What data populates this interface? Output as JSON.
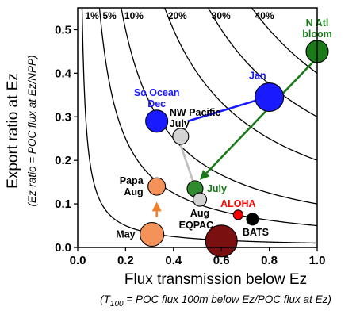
{
  "chart_data": {
    "type": "scatter",
    "title": "",
    "xlabel": "Flux transmission below Ez",
    "xlabel_sub_prefix": "(T",
    "xlabel_sub_subscript": "100",
    "xlabel_sub_rest": " = POC flux 100m below Ez/POC flux at Ez)",
    "ylabel": "Export ratio at Ez",
    "ylabel_sub": "(Ez-ratio = POC flux at Ez/NPP)",
    "xlim": [
      0,
      1.0
    ],
    "ylim": [
      0,
      0.55
    ],
    "x_ticks": [
      "0.0",
      "0.2",
      "0.4",
      "0.6",
      "0.8",
      "1.0"
    ],
    "y_ticks": [
      "0.0",
      "0.1",
      "0.2",
      "0.3",
      "0.4",
      "0.5"
    ],
    "x_tick_values": [
      0,
      0.2,
      0.4,
      0.6,
      0.8,
      1.0
    ],
    "y_tick_values": [
      0,
      0.1,
      0.2,
      0.3,
      0.4,
      0.5
    ],
    "contours": [
      {
        "label": "1%",
        "value": 0.01
      },
      {
        "label": "5%",
        "value": 0.05
      },
      {
        "label": "10%",
        "value": 0.1
      },
      {
        "label": "20%",
        "value": 0.2
      },
      {
        "label": "30%",
        "value": 0.3
      },
      {
        "label": "40%",
        "value": 0.4
      }
    ],
    "points": [
      {
        "x": 1.0,
        "y": 0.45,
        "size": 14,
        "color": "#1a7a1a",
        "label_lines": [
          "N Atl",
          "bloom"
        ],
        "label_color": "#1a7a1a",
        "label_pos": "above"
      },
      {
        "x": 0.8,
        "y": 0.345,
        "size": 18,
        "color": "#1a1aff",
        "label_lines": [
          "Jan"
        ],
        "label_color": "#1a1aff",
        "label_pos": "upper-left"
      },
      {
        "x": 0.33,
        "y": 0.29,
        "size": 14,
        "color": "#1a1aff",
        "label_lines": [
          "So Ocean",
          "Dec"
        ],
        "label_color": "#1a1aff",
        "label_pos": "above"
      },
      {
        "x": 0.43,
        "y": 0.255,
        "size": 10,
        "color": "#d3d3d3",
        "label_lines": [
          "NW Pacific",
          "July"
        ],
        "label_color": "#000000",
        "label_pos": "right"
      },
      {
        "x": 0.49,
        "y": 0.135,
        "size": 10,
        "color": "#2e8b2e",
        "label_lines": [
          "July"
        ],
        "label_color": "#1a7a1a",
        "label_pos": "right"
      },
      {
        "x": 0.51,
        "y": 0.11,
        "size": 8.5,
        "color": "#d3d3d3",
        "label_lines": [
          "Aug"
        ],
        "label_color": "#000000",
        "label_pos": "below"
      },
      {
        "x": 0.33,
        "y": 0.14,
        "size": 11,
        "color": "#f5925a",
        "label_lines": [
          "Papa",
          "Aug"
        ],
        "label_color": "#000000",
        "label_pos": "left"
      },
      {
        "x": 0.31,
        "y": 0.03,
        "size": 15,
        "color": "#f5925a",
        "label_lines": [
          "May"
        ],
        "label_color": "#000000",
        "label_pos": "left"
      },
      {
        "x": 0.6,
        "y": 0.015,
        "size": 20,
        "color": "#7b1010",
        "label_lines": [
          "EQPAC"
        ],
        "label_color": "#000000",
        "label_pos": "upper-left"
      },
      {
        "x": 0.67,
        "y": 0.075,
        "size": 6,
        "color": "#ff0000",
        "label_lines": [
          "ALOHA"
        ],
        "label_color": "#ff0000",
        "label_pos": "above"
      },
      {
        "x": 0.73,
        "y": 0.065,
        "size": 7.5,
        "color": "#000000",
        "label_lines": [
          "BATS"
        ],
        "label_color": "#000000",
        "label_pos": "below"
      }
    ],
    "arrows": [
      {
        "from": [
          0.46,
          0.29
        ],
        "to": [
          0.79,
          0.345
        ],
        "color": "#1a1aff"
      },
      {
        "from": [
          0.99,
          0.43
        ],
        "to": [
          0.51,
          0.155
        ],
        "color": "#1a7a1a"
      },
      {
        "from": [
          0.43,
          0.235
        ],
        "to": [
          0.5,
          0.122
        ],
        "color": "#bfbfbf"
      },
      {
        "from": [
          0.33,
          0.07
        ],
        "to": [
          0.33,
          0.105
        ],
        "color": "#f07f2a"
      }
    ]
  }
}
